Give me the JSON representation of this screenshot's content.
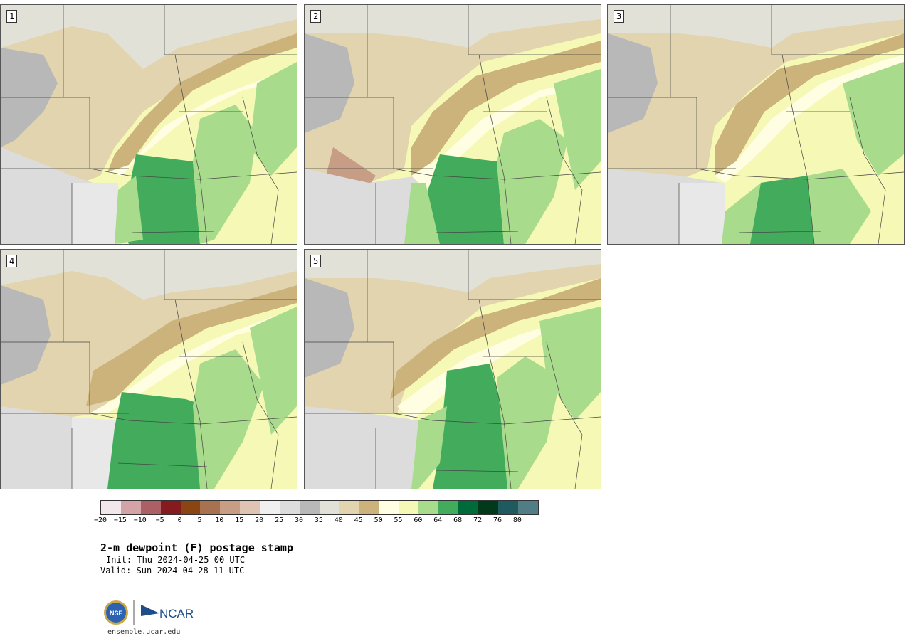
{
  "panels": [
    {
      "label": "1"
    },
    {
      "label": "2"
    },
    {
      "label": "3"
    },
    {
      "label": "4"
    },
    {
      "label": "5"
    }
  ],
  "colorbar": {
    "ticks": [
      "−20",
      "−15",
      "−10",
      "−5",
      "0",
      "5",
      "10",
      "15",
      "20",
      "25",
      "30",
      "35",
      "40",
      "45",
      "50",
      "55",
      "60",
      "64",
      "68",
      "72",
      "76",
      "80"
    ],
    "colors": [
      "#f2e7ea",
      "#d3a3a8",
      "#ad5f66",
      "#861b1f",
      "#8b4513",
      "#a8714f",
      "#c79d86",
      "#e0c4b3",
      "#f0f0f0",
      "#dcdcdc",
      "#b8b8b8",
      "#e1e1d8",
      "#e2d4ae",
      "#cbb37b",
      "#fffde2",
      "#f6f9b5",
      "#a8dc8c",
      "#42ac5c",
      "#006b3a",
      "#003a1a",
      "#1e5a5f",
      "#507d86"
    ]
  },
  "title": "2-m dewpoint (F) postage stamp",
  "init": "Init: Thu 2024-04-25 00 UTC",
  "valid": "Valid: Sun 2024-04-28 11 UTC",
  "logos": {
    "nsf": "NSF",
    "ncar": "NCAR"
  },
  "site": "ensemble.ucar.edu"
}
